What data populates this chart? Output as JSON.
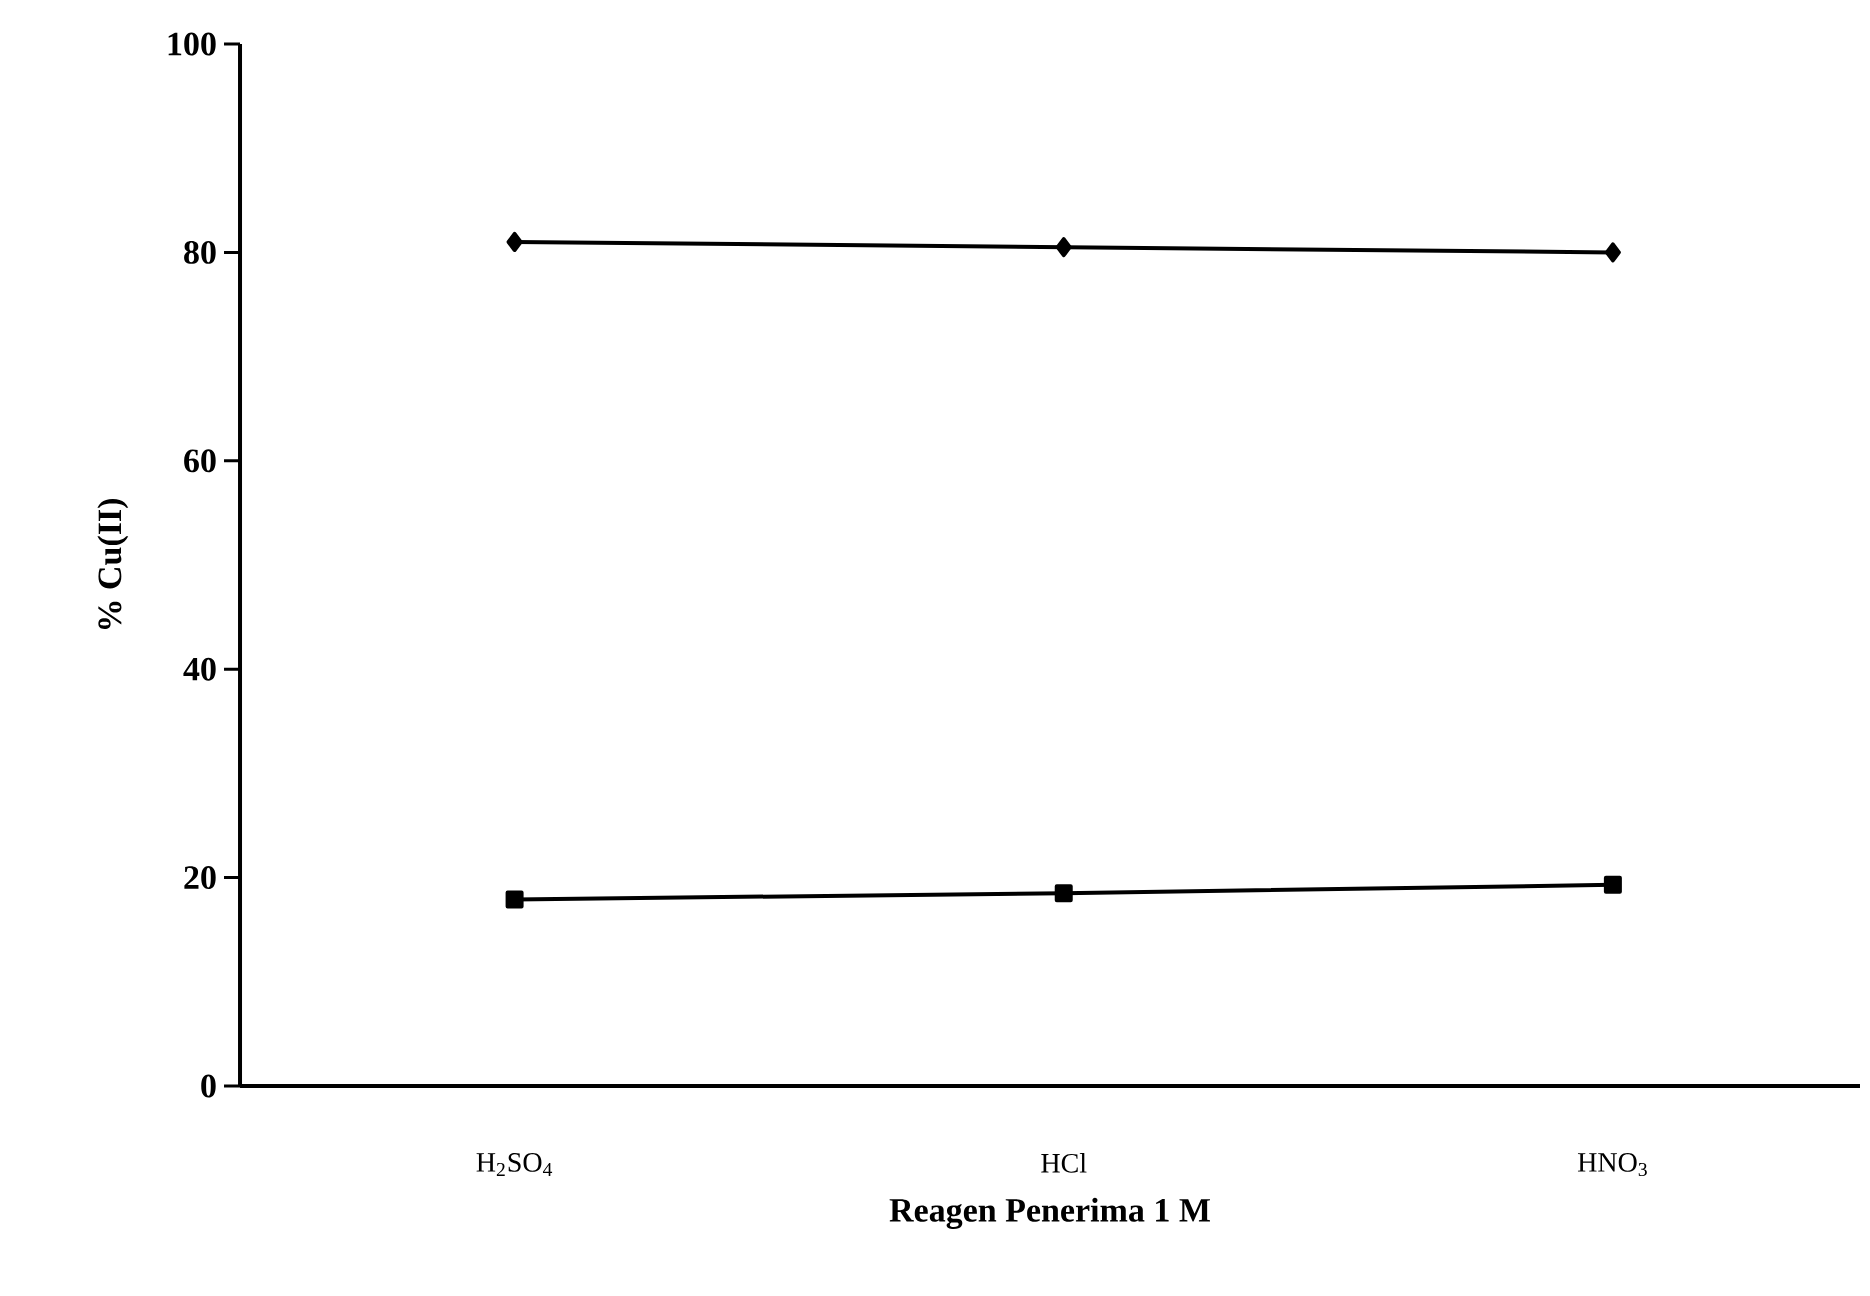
{
  "chart_data": {
    "type": "line",
    "xlabel": "Reagen Penerima 1 M",
    "ylabel": "% Cu(II)",
    "categories": [
      "H$_{2}$SO$_{4}$",
      "HCl",
      "HNO$_{3}$"
    ],
    "series": [
      {
        "color": "#000000",
        "marker": "diamond",
        "values": [
          81,
          80.5,
          80
        ]
      },
      {
        "color": "#000000",
        "marker": "square",
        "values": [
          17.9,
          18.5,
          19.3
        ]
      }
    ],
    "ylim": [
      0,
      100
    ],
    "yticks": [
      0,
      20,
      40,
      60,
      80,
      100
    ],
    "grid": false,
    "line_style": "solid"
  }
}
